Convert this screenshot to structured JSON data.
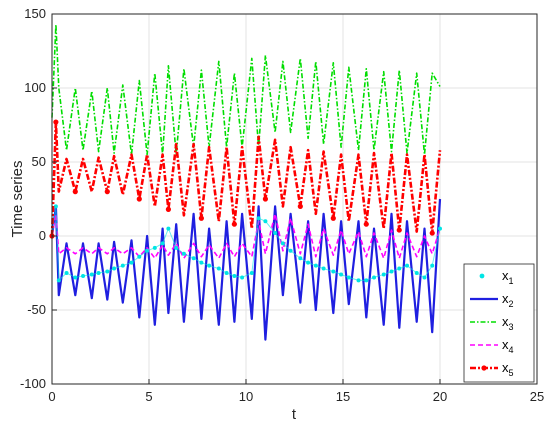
{
  "chart_data": {
    "type": "line",
    "xlabel": "t",
    "ylabel": "Time series",
    "xlim": [
      0,
      25
    ],
    "ylim": [
      -100,
      150
    ],
    "x_ticks": [
      "0",
      "5",
      "10",
      "15",
      "20",
      "25"
    ],
    "y_ticks": [
      "-100",
      "-50",
      "0",
      "50",
      "100",
      "150"
    ],
    "grid": true,
    "legend_position": "lower-right",
    "x": [
      0,
      0.2,
      0.35,
      0.75,
      1.2,
      1.6,
      2.05,
      2.4,
      2.85,
      3.2,
      3.65,
      4.1,
      4.5,
      4.9,
      5.3,
      5.7,
      6.0,
      6.4,
      6.8,
      7.3,
      7.7,
      8.1,
      8.6,
      9.0,
      9.4,
      9.8,
      10.3,
      10.65,
      11.0,
      11.5,
      11.9,
      12.3,
      12.8,
      13.2,
      13.6,
      14.0,
      14.5,
      14.9,
      15.3,
      15.8,
      16.2,
      16.6,
      17.1,
      17.5,
      17.9,
      18.3,
      18.8,
      19.2,
      19.6,
      20.0
    ],
    "series": [
      {
        "name": "x1",
        "color": "#00e5e5",
        "style": "dots",
        "values": [
          0,
          20,
          -30,
          -25,
          -28,
          -27,
          -26,
          -25,
          -24,
          -22,
          -20,
          -18,
          -14,
          -10,
          -8,
          -5,
          5,
          -8,
          -12,
          -15,
          -18,
          -20,
          -22,
          -25,
          -27,
          -28,
          -25,
          12,
          10,
          2,
          -5,
          -10,
          -15,
          -18,
          -20,
          -22,
          -24,
          -26,
          -28,
          -30,
          -30,
          -28,
          -26,
          -24,
          -22,
          -20,
          -25,
          -28,
          -20,
          5
        ]
      },
      {
        "name": "x2",
        "color": "#1f1fe0",
        "style": "solid",
        "values": [
          0,
          20,
          -40,
          -5,
          -40,
          -5,
          -42,
          -5,
          -43,
          -4,
          -45,
          -3,
          -55,
          0,
          -60,
          5,
          -52,
          8,
          -58,
          15,
          -56,
          5,
          -60,
          10,
          -58,
          15,
          -56,
          20,
          -70,
          20,
          -40,
          15,
          -45,
          10,
          -50,
          15,
          -52,
          10,
          -46,
          10,
          -55,
          5,
          -60,
          15,
          -62,
          10,
          -58,
          5,
          -65,
          25
        ]
      },
      {
        "name": "x3",
        "color": "#00dd00",
        "style": "dashdot",
        "values": [
          80,
          143,
          100,
          58,
          100,
          58,
          98,
          57,
          100,
          56,
          102,
          55,
          105,
          55,
          110,
          55,
          115,
          55,
          113,
          60,
          112,
          60,
          118,
          60,
          110,
          60,
          120,
          60,
          122,
          70,
          118,
          70,
          120,
          66,
          118,
          62,
          117,
          60,
          114,
          58,
          113,
          58,
          111,
          57,
          112,
          56,
          110,
          55,
          110,
          101
        ]
      },
      {
        "name": "x4",
        "color": "#ff00ff",
        "style": "dashed",
        "values": [
          0,
          15,
          -12,
          -8,
          -12,
          -8,
          -12,
          -8,
          -12,
          -8,
          -12,
          -8,
          -14,
          -8,
          -15,
          -6,
          -13,
          -5,
          -15,
          -5,
          -14,
          -6,
          -15,
          -5,
          -14,
          -5,
          -14,
          10,
          -12,
          15,
          -10,
          12,
          -12,
          8,
          -14,
          5,
          -13,
          4,
          -12,
          3,
          -14,
          2,
          -15,
          4,
          -15,
          2,
          -14,
          0,
          -12,
          5
        ]
      },
      {
        "name": "x5",
        "color": "#ff0000",
        "style": "dashdot-dots",
        "values": [
          0,
          77,
          30,
          52,
          30,
          52,
          30,
          53,
          30,
          54,
          28,
          55,
          25,
          55,
          20,
          55,
          18,
          62,
          14,
          62,
          12,
          60,
          10,
          60,
          8,
          60,
          5,
          67,
          25,
          65,
          20,
          60,
          20,
          58,
          15,
          57,
          12,
          55,
          10,
          55,
          8,
          56,
          5,
          56,
          4,
          55,
          3,
          55,
          2,
          58
        ]
      }
    ]
  },
  "legend": {
    "entries": [
      {
        "base": "x",
        "sub": "1"
      },
      {
        "base": "x",
        "sub": "2"
      },
      {
        "base": "x",
        "sub": "3"
      },
      {
        "base": "x",
        "sub": "4"
      },
      {
        "base": "x",
        "sub": "5"
      }
    ]
  }
}
